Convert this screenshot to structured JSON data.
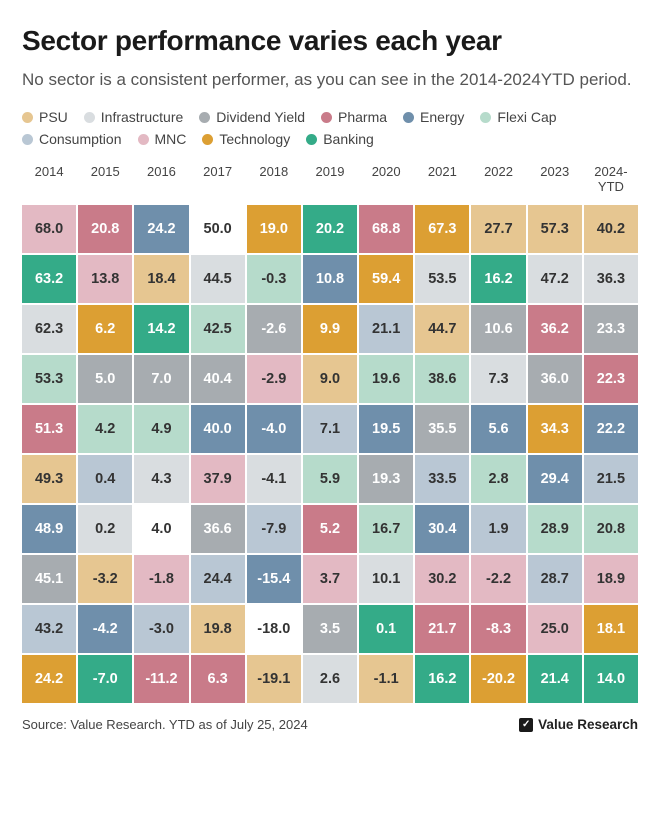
{
  "title": "Sector performance varies each year",
  "subtitle": "No sector is a consistent performer, as you can see in the 2014-2024YTD period.",
  "legend": [
    {
      "label": "PSU",
      "color": "#e6c691"
    },
    {
      "label": "Infrastructure",
      "color": "#d9dde0"
    },
    {
      "label": "Dividend Yield",
      "color": "#a7acb0"
    },
    {
      "label": "Pharma",
      "color": "#c97b89"
    },
    {
      "label": "Energy",
      "color": "#6f8fab"
    },
    {
      "label": "Flexi Cap",
      "color": "#b6dbcb"
    },
    {
      "label": "Consumption",
      "color": "#b9c7d4"
    },
    {
      "label": "MNC",
      "color": "#e3b9c3"
    },
    {
      "label": "Technology",
      "color": "#dc9f33"
    },
    {
      "label": "Banking",
      "color": "#34ab88"
    }
  ],
  "text_colors": {
    "light": "#ffffff",
    "dark": "#333333"
  },
  "columns": [
    "2014",
    "2015",
    "2016",
    "2017",
    "2018",
    "2019",
    "2020",
    "2021",
    "2022",
    "2023",
    "2024-\nYTD"
  ],
  "cells": [
    [
      {
        "v": "68.0",
        "c": "#e3b9c3",
        "t": "dark"
      },
      {
        "v": "20.8",
        "c": "#c97b89",
        "t": "light"
      },
      {
        "v": "24.2",
        "c": "#6f8fab",
        "t": "light"
      },
      {
        "v": "50.0",
        "c": "#ffffff",
        "t": "dark"
      },
      {
        "v": "19.0",
        "c": "#dc9f33",
        "t": "light"
      },
      {
        "v": "20.2",
        "c": "#34ab88",
        "t": "light"
      },
      {
        "v": "68.8",
        "c": "#c97b89",
        "t": "light"
      },
      {
        "v": "67.3",
        "c": "#dc9f33",
        "t": "light"
      },
      {
        "v": "27.7",
        "c": "#e6c691",
        "t": "dark"
      },
      {
        "v": "57.3",
        "c": "#e6c691",
        "t": "dark"
      },
      {
        "v": "40.2",
        "c": "#e6c691",
        "t": "dark"
      }
    ],
    [
      {
        "v": "63.2",
        "c": "#34ab88",
        "t": "light"
      },
      {
        "v": "13.8",
        "c": "#e3b9c3",
        "t": "dark"
      },
      {
        "v": "18.4",
        "c": "#e6c691",
        "t": "dark"
      },
      {
        "v": "44.5",
        "c": "#d9dde0",
        "t": "dark"
      },
      {
        "v": "-0.3",
        "c": "#b6dbcb",
        "t": "dark"
      },
      {
        "v": "10.8",
        "c": "#6f8fab",
        "t": "light"
      },
      {
        "v": "59.4",
        "c": "#dc9f33",
        "t": "light"
      },
      {
        "v": "53.5",
        "c": "#d9dde0",
        "t": "dark"
      },
      {
        "v": "16.2",
        "c": "#34ab88",
        "t": "light"
      },
      {
        "v": "47.2",
        "c": "#d9dde0",
        "t": "dark"
      },
      {
        "v": "36.3",
        "c": "#d9dde0",
        "t": "dark"
      }
    ],
    [
      {
        "v": "62.3",
        "c": "#d9dde0",
        "t": "dark"
      },
      {
        "v": "6.2",
        "c": "#dc9f33",
        "t": "light"
      },
      {
        "v": "14.2",
        "c": "#34ab88",
        "t": "light"
      },
      {
        "v": "42.5",
        "c": "#b6dbcb",
        "t": "dark"
      },
      {
        "v": "-2.6",
        "c": "#a7acb0",
        "t": "light"
      },
      {
        "v": "9.9",
        "c": "#dc9f33",
        "t": "light"
      },
      {
        "v": "21.1",
        "c": "#b9c7d4",
        "t": "dark"
      },
      {
        "v": "44.7",
        "c": "#e6c691",
        "t": "dark"
      },
      {
        "v": "10.6",
        "c": "#a7acb0",
        "t": "light"
      },
      {
        "v": "36.2",
        "c": "#c97b89",
        "t": "light"
      },
      {
        "v": "23.3",
        "c": "#a7acb0",
        "t": "light"
      }
    ],
    [
      {
        "v": "53.3",
        "c": "#b6dbcb",
        "t": "dark"
      },
      {
        "v": "5.0",
        "c": "#a7acb0",
        "t": "light"
      },
      {
        "v": "7.0",
        "c": "#a7acb0",
        "t": "light"
      },
      {
        "v": "40.4",
        "c": "#a7acb0",
        "t": "light"
      },
      {
        "v": "-2.9",
        "c": "#e3b9c3",
        "t": "dark"
      },
      {
        "v": "9.0",
        "c": "#e6c691",
        "t": "dark"
      },
      {
        "v": "19.6",
        "c": "#b6dbcb",
        "t": "dark"
      },
      {
        "v": "38.6",
        "c": "#b6dbcb",
        "t": "dark"
      },
      {
        "v": "7.3",
        "c": "#d9dde0",
        "t": "dark"
      },
      {
        "v": "36.0",
        "c": "#a7acb0",
        "t": "light"
      },
      {
        "v": "22.3",
        "c": "#c97b89",
        "t": "light"
      }
    ],
    [
      {
        "v": "51.3",
        "c": "#c97b89",
        "t": "light"
      },
      {
        "v": "4.2",
        "c": "#b6dbcb",
        "t": "dark"
      },
      {
        "v": "4.9",
        "c": "#b6dbcb",
        "t": "dark"
      },
      {
        "v": "40.0",
        "c": "#6f8fab",
        "t": "light"
      },
      {
        "v": "-4.0",
        "c": "#6f8fab",
        "t": "light"
      },
      {
        "v": "7.1",
        "c": "#b9c7d4",
        "t": "dark"
      },
      {
        "v": "19.5",
        "c": "#6f8fab",
        "t": "light"
      },
      {
        "v": "35.5",
        "c": "#a7acb0",
        "t": "light"
      },
      {
        "v": "5.6",
        "c": "#6f8fab",
        "t": "light"
      },
      {
        "v": "34.3",
        "c": "#dc9f33",
        "t": "light"
      },
      {
        "v": "22.2",
        "c": "#6f8fab",
        "t": "light"
      }
    ],
    [
      {
        "v": "49.3",
        "c": "#e6c691",
        "t": "dark"
      },
      {
        "v": "0.4",
        "c": "#b9c7d4",
        "t": "dark"
      },
      {
        "v": "4.3",
        "c": "#d9dde0",
        "t": "dark"
      },
      {
        "v": "37.9",
        "c": "#e3b9c3",
        "t": "dark"
      },
      {
        "v": "-4.1",
        "c": "#d9dde0",
        "t": "dark"
      },
      {
        "v": "5.9",
        "c": "#b6dbcb",
        "t": "dark"
      },
      {
        "v": "19.3",
        "c": "#a7acb0",
        "t": "light"
      },
      {
        "v": "33.5",
        "c": "#b9c7d4",
        "t": "dark"
      },
      {
        "v": "2.8",
        "c": "#b6dbcb",
        "t": "dark"
      },
      {
        "v": "29.4",
        "c": "#6f8fab",
        "t": "light"
      },
      {
        "v": "21.5",
        "c": "#b9c7d4",
        "t": "dark"
      }
    ],
    [
      {
        "v": "48.9",
        "c": "#6f8fab",
        "t": "light"
      },
      {
        "v": "0.2",
        "c": "#d9dde0",
        "t": "dark"
      },
      {
        "v": "4.0",
        "c": "#ffffff",
        "t": "dark"
      },
      {
        "v": "36.6",
        "c": "#a7acb0",
        "t": "light"
      },
      {
        "v": "-7.9",
        "c": "#b9c7d4",
        "t": "dark"
      },
      {
        "v": "5.2",
        "c": "#c97b89",
        "t": "light"
      },
      {
        "v": "16.7",
        "c": "#b6dbcb",
        "t": "dark"
      },
      {
        "v": "30.4",
        "c": "#6f8fab",
        "t": "light"
      },
      {
        "v": "1.9",
        "c": "#b9c7d4",
        "t": "dark"
      },
      {
        "v": "28.9",
        "c": "#b6dbcb",
        "t": "dark"
      },
      {
        "v": "20.8",
        "c": "#b6dbcb",
        "t": "dark"
      }
    ],
    [
      {
        "v": "45.1",
        "c": "#a7acb0",
        "t": "light"
      },
      {
        "v": "-3.2",
        "c": "#e6c691",
        "t": "dark"
      },
      {
        "v": "-1.8",
        "c": "#e3b9c3",
        "t": "dark"
      },
      {
        "v": "24.4",
        "c": "#b9c7d4",
        "t": "dark"
      },
      {
        "v": "-15.4",
        "c": "#6f8fab",
        "t": "light"
      },
      {
        "v": "3.7",
        "c": "#e3b9c3",
        "t": "dark"
      },
      {
        "v": "10.1",
        "c": "#d9dde0",
        "t": "dark"
      },
      {
        "v": "30.2",
        "c": "#e3b9c3",
        "t": "dark"
      },
      {
        "v": "-2.2",
        "c": "#e3b9c3",
        "t": "dark"
      },
      {
        "v": "28.7",
        "c": "#b9c7d4",
        "t": "dark"
      },
      {
        "v": "18.9",
        "c": "#e3b9c3",
        "t": "dark"
      }
    ],
    [
      {
        "v": "43.2",
        "c": "#b9c7d4",
        "t": "dark"
      },
      {
        "v": "-4.2",
        "c": "#6f8fab",
        "t": "light"
      },
      {
        "v": "-3.0",
        "c": "#b9c7d4",
        "t": "dark"
      },
      {
        "v": "19.8",
        "c": "#e6c691",
        "t": "dark"
      },
      {
        "v": "-18.0",
        "c": "#ffffff",
        "t": "dark"
      },
      {
        "v": "3.5",
        "c": "#a7acb0",
        "t": "light"
      },
      {
        "v": "0.1",
        "c": "#34ab88",
        "t": "light"
      },
      {
        "v": "21.7",
        "c": "#c97b89",
        "t": "light"
      },
      {
        "v": "-8.3",
        "c": "#c97b89",
        "t": "light"
      },
      {
        "v": "25.0",
        "c": "#e3b9c3",
        "t": "dark"
      },
      {
        "v": "18.1",
        "c": "#dc9f33",
        "t": "light"
      }
    ],
    [
      {
        "v": "24.2",
        "c": "#dc9f33",
        "t": "light"
      },
      {
        "v": "-7.0",
        "c": "#34ab88",
        "t": "light"
      },
      {
        "v": "-11.2",
        "c": "#c97b89",
        "t": "light"
      },
      {
        "v": "6.3",
        "c": "#c97b89",
        "t": "light"
      },
      {
        "v": "-19.1",
        "c": "#e6c691",
        "t": "dark"
      },
      {
        "v": "2.6",
        "c": "#d9dde0",
        "t": "dark"
      },
      {
        "v": "-1.1",
        "c": "#e6c691",
        "t": "dark"
      },
      {
        "v": "16.2",
        "c": "#34ab88",
        "t": "light"
      },
      {
        "v": "-20.2",
        "c": "#dc9f33",
        "t": "light"
      },
      {
        "v": "21.4",
        "c": "#34ab88",
        "t": "light"
      },
      {
        "v": "14.0",
        "c": "#34ab88",
        "t": "light"
      }
    ]
  ],
  "source": "Source: Value Research. YTD as of July 25, 2024",
  "brand": "Value Research"
}
